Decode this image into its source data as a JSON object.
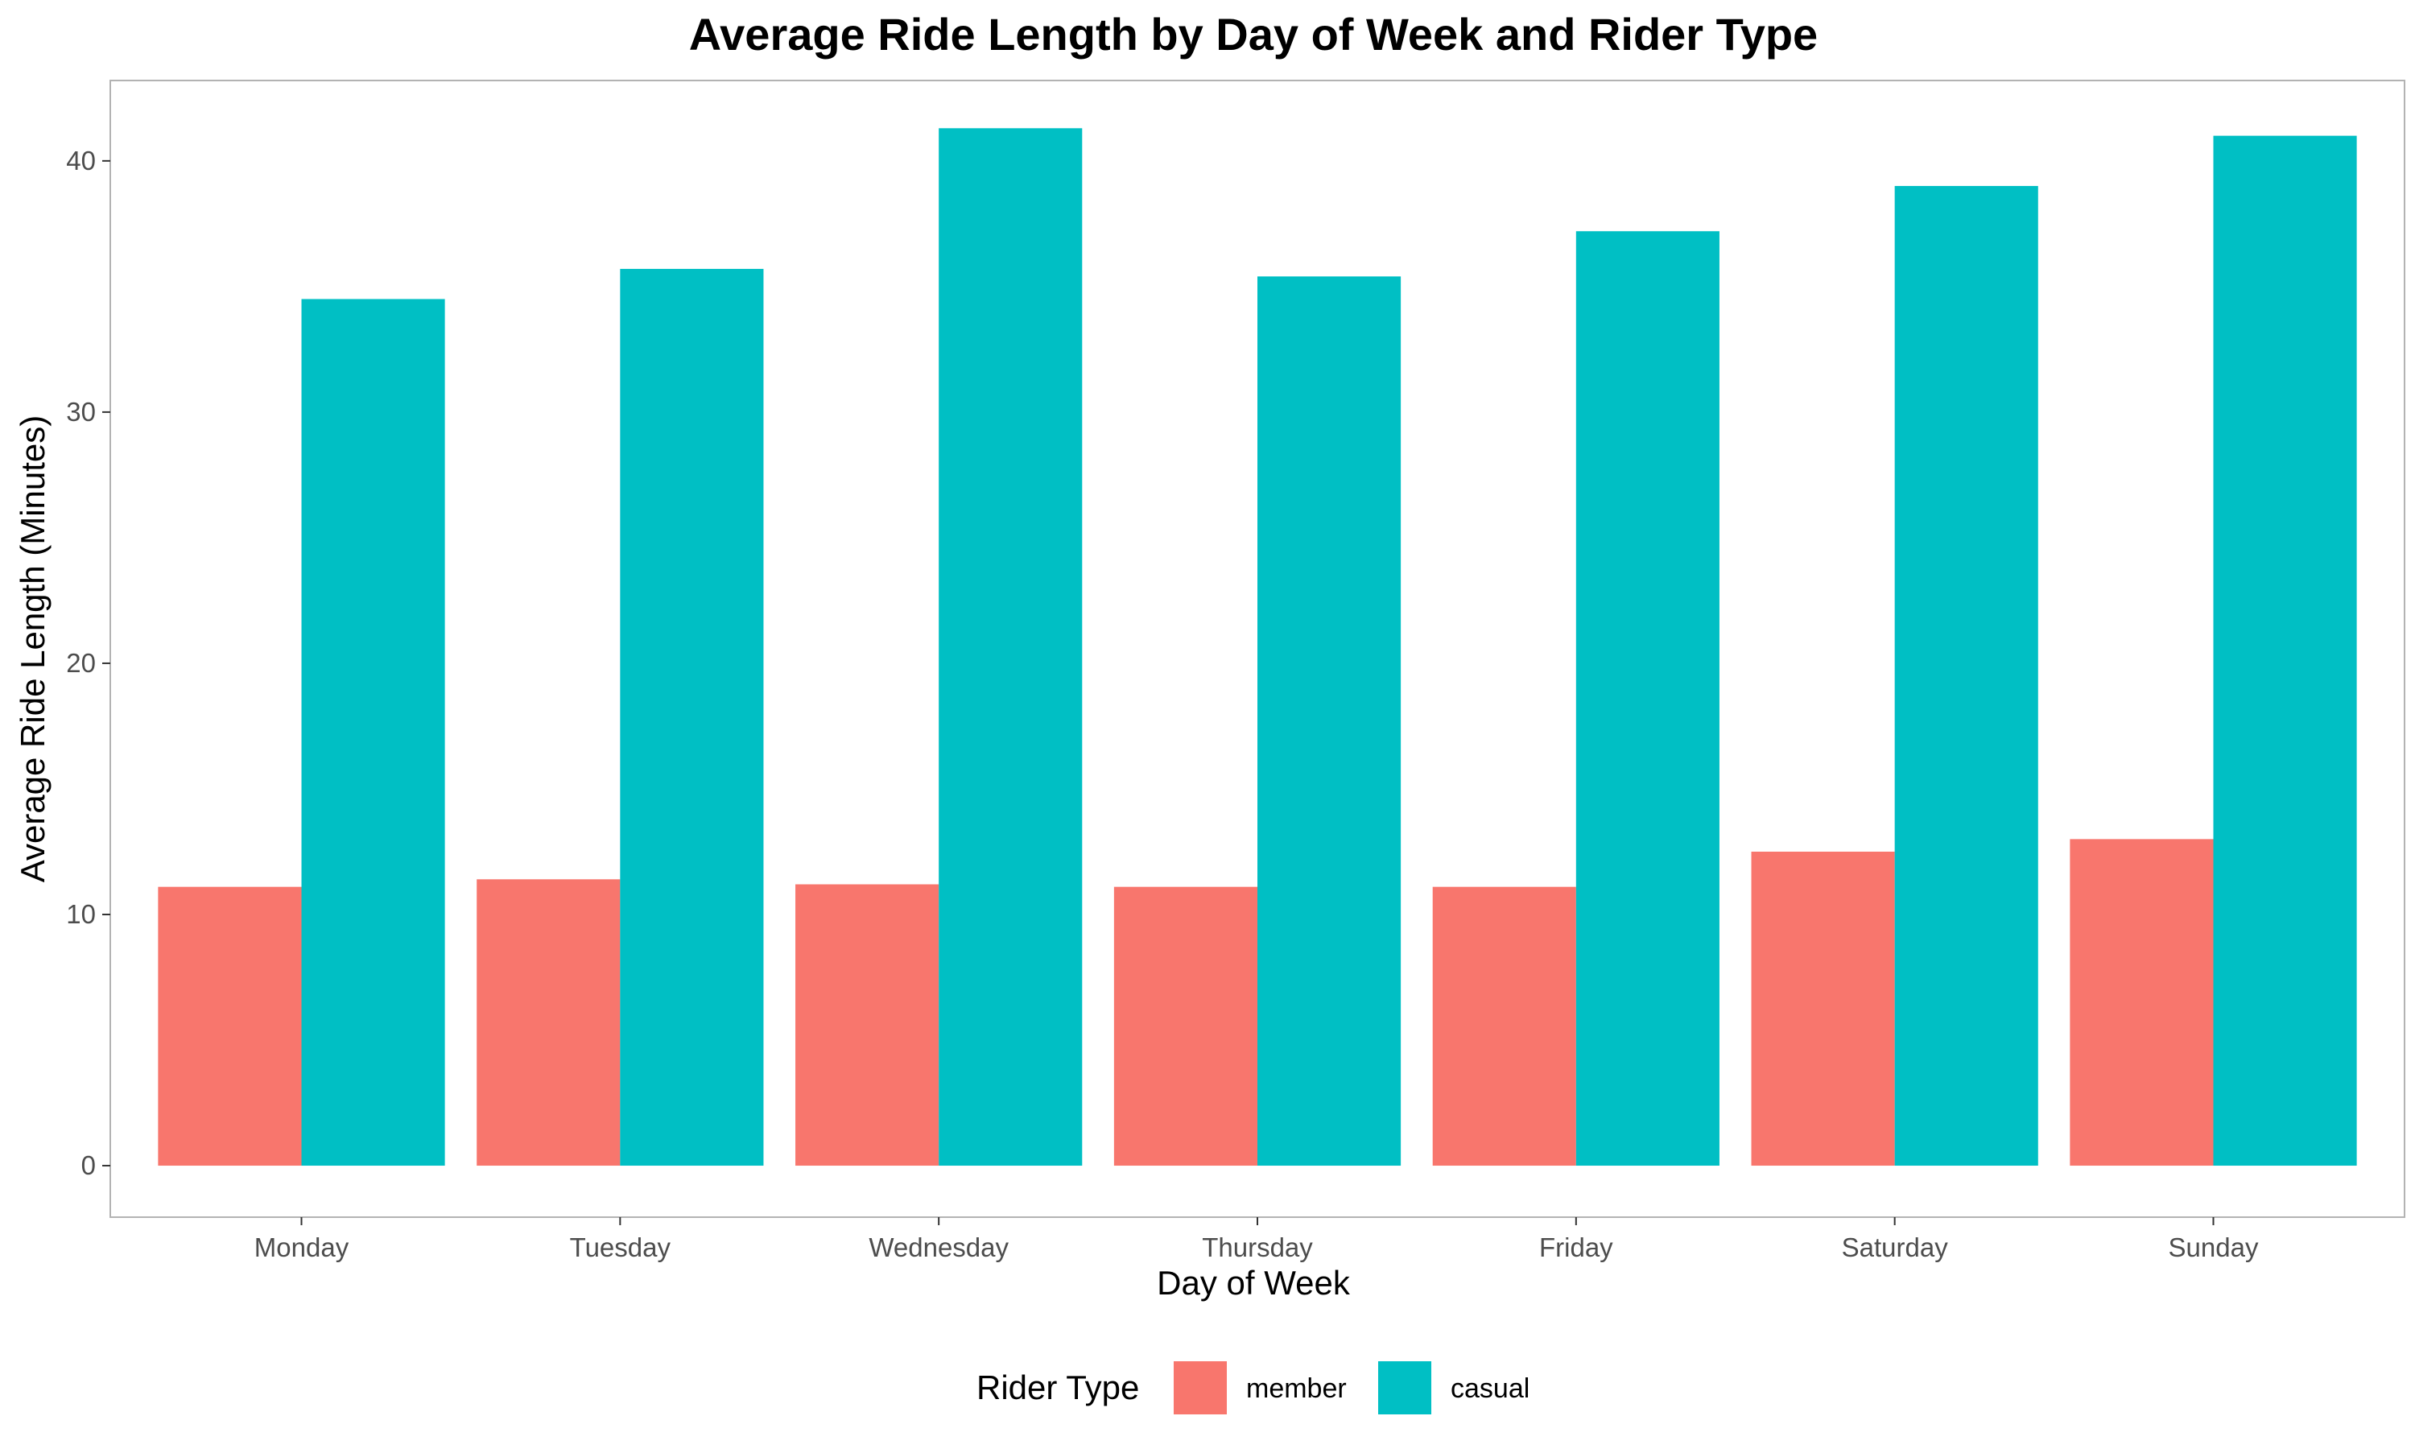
{
  "chart_data": {
    "type": "bar",
    "title": "Average Ride Length by Day of Week and Rider Type",
    "xlabel": "Day of Week",
    "ylabel": "Average Ride Length (Minutes)",
    "categories": [
      "Monday",
      "Tuesday",
      "Wednesday",
      "Thursday",
      "Friday",
      "Saturday",
      "Sunday"
    ],
    "series": [
      {
        "name": "member",
        "color": "#F8766D",
        "values": [
          11.1,
          11.4,
          11.2,
          11.1,
          11.1,
          12.5,
          13.0
        ]
      },
      {
        "name": "casual",
        "color": "#00BFC4",
        "values": [
          34.5,
          35.7,
          41.3,
          35.4,
          37.2,
          39.0,
          41.0
        ]
      }
    ],
    "ylim": [
      -2.05,
      43.2
    ],
    "yticks": [
      0,
      10,
      20,
      30,
      40
    ],
    "grid": false,
    "legend": {
      "title": "Rider Type",
      "position": "bottom"
    }
  }
}
